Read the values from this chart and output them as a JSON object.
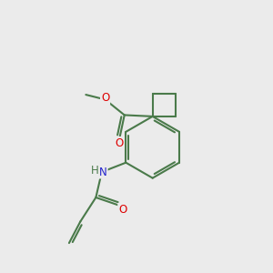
{
  "background_color": "#ebebeb",
  "bond_color": "#4a7a4a",
  "bond_color_dark": "#2a5a2a",
  "bond_width": 1.5,
  "atom_colors": {
    "O": "#dd0000",
    "N": "#2222cc",
    "C": "#4a7a4a"
  },
  "font_size": 8.5,
  "fig_size": [
    3.0,
    3.0
  ],
  "dpi": 100
}
